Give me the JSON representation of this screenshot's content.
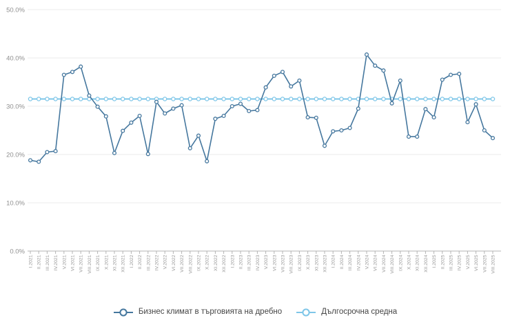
{
  "chart_data": {
    "type": "line",
    "categories": [
      "I.2021",
      "II.2021",
      "III.2021",
      "IV.2021",
      "V.2021",
      "VI.2021",
      "VII.2021",
      "VIII.2021",
      "IX.2021",
      "X.2021",
      "XI.2021",
      "XII.2021",
      "I.2022",
      "II.2022",
      "III.2022",
      "IV.2022",
      "V.2022",
      "VI.2022",
      "VII.2022",
      "VIII.2022",
      "IX.2022",
      "X.2022",
      "XI.2022",
      "XII.2022",
      "I.2023",
      "II.2023",
      "III.2023",
      "IV.2023",
      "V.2023",
      "VI.2023",
      "VII.2023",
      "VIII.2023",
      "IX.2023",
      "X.2023",
      "XI.2023",
      "XII.2023",
      "I.2024",
      "II.2024",
      "III.2024",
      "IV.2024",
      "V.2024",
      "VI.2024",
      "VII.2024",
      "VIII.2024",
      "IX.2024",
      "X.2024",
      "XI.2024",
      "XII.2024",
      "I.2025",
      "II.2025",
      "III.2025",
      "IV.2025",
      "V.2025",
      "VI.2025",
      "VII.2025",
      "VIII.2025"
    ],
    "series": [
      {
        "name": "Бизнес климат в търговията на дребно",
        "color": "#45779e",
        "marker": "open-circle",
        "values": [
          18.8,
          18.5,
          20.5,
          20.7,
          36.5,
          37.1,
          38.2,
          32.2,
          29.9,
          27.9,
          20.3,
          24.9,
          26.6,
          28.0,
          20.1,
          30.9,
          28.5,
          29.5,
          30.2,
          21.3,
          23.9,
          18.6,
          27.4,
          28.0,
          30.0,
          30.5,
          29.0,
          29.2,
          33.9,
          36.3,
          37.1,
          34.1,
          35.3,
          27.7,
          27.6,
          21.8,
          24.8,
          25.0,
          25.5,
          29.5,
          40.7,
          38.4,
          37.4,
          30.6,
          35.3,
          23.7,
          23.7,
          29.4,
          27.7,
          35.5,
          36.5,
          36.7,
          26.7,
          30.4,
          25.0,
          23.4
        ]
      },
      {
        "name": "Дългосрочна средна",
        "color": "#7ec6e8",
        "marker": "open-circle",
        "constant_value": 31.5
      }
    ],
    "title": "",
    "xlabel": "",
    "ylabel": "",
    "ylim": [
      0,
      50
    ],
    "yticks": [
      50,
      40,
      30,
      20,
      10,
      0
    ],
    "ytick_labels": [
      "50.0%",
      "40.0%",
      "30.0%",
      "20.0%",
      "10.0%",
      "0.0%"
    ],
    "grid": "horizontal",
    "legend_position": "bottom-center",
    "x_tick_label_rotation": -90
  },
  "colors": {
    "background": "#ffffff",
    "gridline": "#ebebeb",
    "axis_line": "#b3b3b3",
    "tick_label": "#8f8f8f",
    "x_tick_label": "#9a9a9a",
    "legend_text": "#454545",
    "marker_fill": "#ffffff"
  }
}
